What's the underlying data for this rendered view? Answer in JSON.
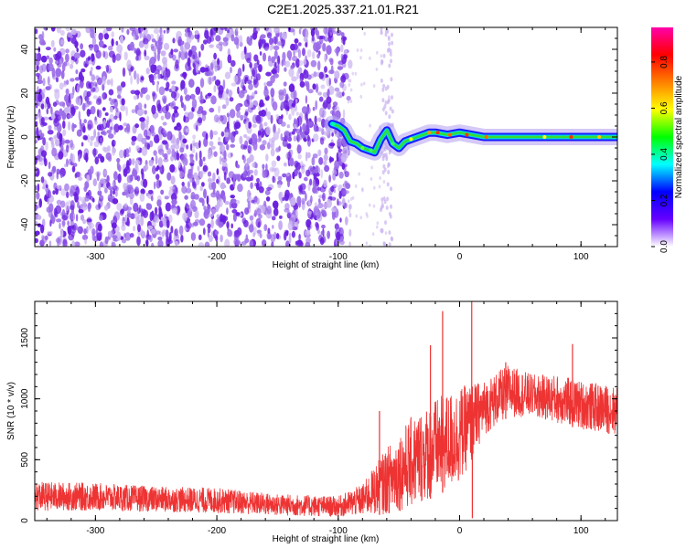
{
  "title": "C2E1.2025.337.21.01.R21",
  "colors": {
    "spec_light": "#c9b2f0",
    "spec_dark": "#6a1fe0",
    "snr_line": "#ee3333",
    "axis": "#000000"
  },
  "chart_data": [
    {
      "type": "heatmap",
      "name": "spectrogram",
      "xlabel": "Height of straight line (km)",
      "ylabel": "Frequency (Hz)",
      "xlim": [
        -350,
        130
      ],
      "ylim": [
        -50,
        50
      ],
      "x_ticks": [
        -300,
        -200,
        -100,
        0,
        100
      ],
      "x_tick_labels": [
        "-300",
        "-200",
        "-100",
        "0",
        "100"
      ],
      "y_ticks": [
        -40,
        -20,
        0,
        20,
        40
      ],
      "y_tick_labels": [
        "-40",
        "-20",
        "0",
        "20",
        "40"
      ],
      "noise_region_x": [
        -350,
        -90
      ],
      "sparse_band_x": [
        -65,
        -55
      ],
      "signal_trace": [
        {
          "x": -105,
          "y": 6
        },
        {
          "x": -100,
          "y": 5
        },
        {
          "x": -95,
          "y": 3
        },
        {
          "x": -90,
          "y": -2
        },
        {
          "x": -85,
          "y": -3
        },
        {
          "x": -80,
          "y": -5
        },
        {
          "x": -75,
          "y": -6
        },
        {
          "x": -70,
          "y": -7
        },
        {
          "x": -65,
          "y": -1
        },
        {
          "x": -60,
          "y": 3
        },
        {
          "x": -55,
          "y": -3
        },
        {
          "x": -50,
          "y": -5
        },
        {
          "x": -45,
          "y": -2
        },
        {
          "x": -40,
          "y": -1
        },
        {
          "x": -35,
          "y": 0
        },
        {
          "x": -30,
          "y": 1
        },
        {
          "x": -25,
          "y": 2
        },
        {
          "x": -20,
          "y": 2
        },
        {
          "x": -10,
          "y": 1
        },
        {
          "x": 0,
          "y": 2
        },
        {
          "x": 10,
          "y": 1
        },
        {
          "x": 20,
          "y": 0
        },
        {
          "x": 40,
          "y": 0
        },
        {
          "x": 60,
          "y": 0
        },
        {
          "x": 80,
          "y": 0
        },
        {
          "x": 100,
          "y": 0
        },
        {
          "x": 130,
          "y": 0
        }
      ],
      "colorbar": {
        "label": "Normalized spectral amplitude",
        "ticks": [
          0.0,
          0.2,
          0.4,
          0.6,
          0.8
        ],
        "tick_labels": [
          "0.0",
          "0.2",
          "0.4",
          "0.6",
          "0.8"
        ],
        "range": [
          0,
          0.95
        ],
        "stops": [
          "#ffffff",
          "#6600ff",
          "#0000ff",
          "#00ffff",
          "#00ff00",
          "#ffff00",
          "#ff8000",
          "#ff0000",
          "#ff00aa"
        ]
      }
    },
    {
      "type": "line",
      "name": "snr",
      "xlabel": "Height of straight line (km)",
      "ylabel": "SNR (10 * v/v)",
      "xlim": [
        -350,
        130
      ],
      "ylim": [
        0,
        1800
      ],
      "x_ticks": [
        -300,
        -200,
        -100,
        0,
        100
      ],
      "x_tick_labels": [
        "-300",
        "-200",
        "-100",
        "0",
        "100"
      ],
      "y_ticks": [
        0,
        500,
        1000,
        1500
      ],
      "y_tick_labels": [
        "0",
        "500",
        "1000",
        "1500"
      ],
      "envelope": [
        {
          "x": -350,
          "low": 80,
          "high": 320
        },
        {
          "x": -300,
          "low": 80,
          "high": 310
        },
        {
          "x": -250,
          "low": 70,
          "high": 280
        },
        {
          "x": -200,
          "low": 60,
          "high": 270
        },
        {
          "x": -150,
          "low": 40,
          "high": 220
        },
        {
          "x": -100,
          "low": 30,
          "high": 200
        },
        {
          "x": -80,
          "low": 40,
          "high": 300
        },
        {
          "x": -60,
          "low": 50,
          "high": 600
        },
        {
          "x": -40,
          "low": 100,
          "high": 850
        },
        {
          "x": -20,
          "low": 200,
          "high": 1000
        },
        {
          "x": 0,
          "low": 300,
          "high": 1100
        },
        {
          "x": 20,
          "low": 700,
          "high": 1150
        },
        {
          "x": 40,
          "low": 850,
          "high": 1280
        },
        {
          "x": 60,
          "low": 850,
          "high": 1200
        },
        {
          "x": 80,
          "low": 800,
          "high": 1200
        },
        {
          "x": 100,
          "low": 750,
          "high": 1150
        },
        {
          "x": 130,
          "low": 700,
          "high": 1100
        }
      ],
      "spikes": [
        {
          "x": -66,
          "y": 900
        },
        {
          "x": -24,
          "y": 1440
        },
        {
          "x": -14,
          "y": 1720
        },
        {
          "x": 10,
          "y": 1800
        },
        {
          "x": 38,
          "y": 1300
        },
        {
          "x": 93,
          "y": 1450
        }
      ]
    }
  ]
}
